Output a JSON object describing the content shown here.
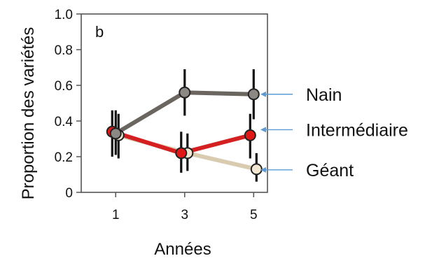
{
  "chart_data": {
    "type": "line",
    "panel_label": "b",
    "xlabel": "Années",
    "ylabel": "Proportion des variétés",
    "x": [
      1,
      3,
      5
    ],
    "xticks": [
      "1",
      "3",
      "5"
    ],
    "yticks": [
      "0",
      "0.2",
      "0.4",
      "0.6",
      "0.8",
      "1.0"
    ],
    "xlim": [
      0,
      5.4
    ],
    "ylim": [
      0,
      1.0
    ],
    "grid": false,
    "series": [
      {
        "name": "Nain",
        "color": "#6b6560",
        "point_fill": "#8c8984",
        "values": [
          0.33,
          0.56,
          0.55
        ],
        "err_low": [
          0.21,
          0.43,
          0.41
        ],
        "err_high": [
          0.46,
          0.69,
          0.69
        ]
      },
      {
        "name": "Intermédiaire",
        "color": "#d42020",
        "point_fill": "#e01818",
        "values": [
          0.34,
          0.22,
          0.32
        ],
        "err_low": [
          0.2,
          0.11,
          0.19
        ],
        "err_high": [
          0.46,
          0.34,
          0.44
        ]
      },
      {
        "name": "Géant",
        "color": "#d9cbb0",
        "point_fill": "#f2e8d2",
        "values": [
          0.32,
          0.22,
          0.13
        ],
        "err_low": [
          0.19,
          0.12,
          0.06
        ],
        "err_high": [
          0.44,
          0.33,
          0.22
        ]
      }
    ],
    "legend": {
      "placement": "right",
      "arrow_color": "#5b9bd5",
      "items": [
        "Nain",
        "Intermédiaire",
        "Géant"
      ]
    }
  }
}
